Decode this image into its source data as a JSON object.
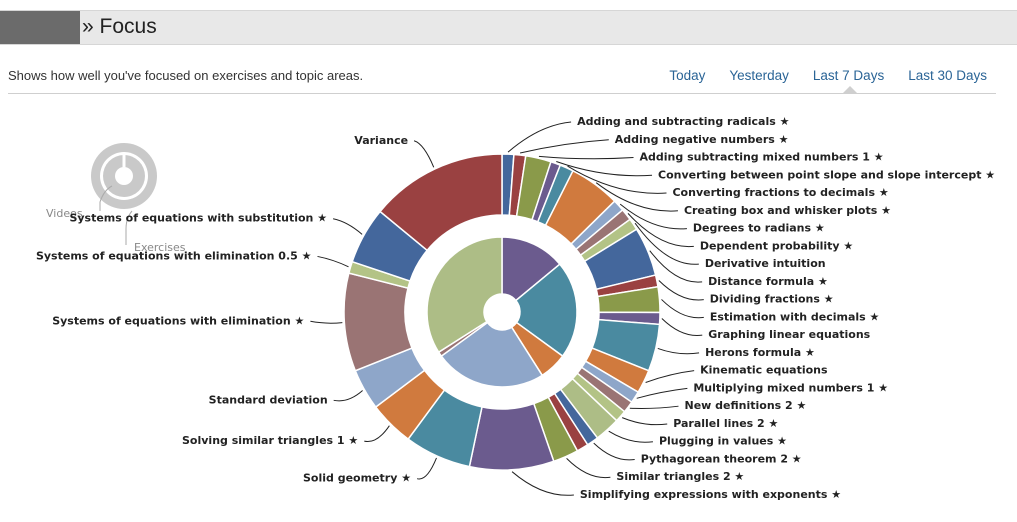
{
  "header": {
    "title": "» Focus"
  },
  "subtitle": "Shows how well you've focused on exercises and topic areas.",
  "range_tabs": [
    {
      "label": "Today",
      "active": false
    },
    {
      "label": "Yesterday",
      "active": false
    },
    {
      "label": "Last 7 Days",
      "active": true
    },
    {
      "label": "Last 30 Days",
      "active": false
    }
  ],
  "legend": {
    "videos_label": "Videos",
    "exercises_label": "Exercises"
  },
  "colors": {
    "accent_link": "#2a6496",
    "blue": "#44679c",
    "red": "#9a4141",
    "olive": "#8a9a4a",
    "purple": "#6b5b8e",
    "teal": "#4a8aa0",
    "orange": "#d07a3e",
    "lightblue": "#8ea6c9",
    "mauve": "#9a7474",
    "lightolive": "#b3c386",
    "lightsage": "#adbd86"
  },
  "chart_data": {
    "type": "pie",
    "title": "",
    "center_x": null,
    "inner_ring": {
      "label": "Videos",
      "series": [
        {
          "value": 14,
          "color": "#6b5b8e"
        },
        {
          "value": 21,
          "color": "#4a8aa0"
        },
        {
          "value": 6,
          "color": "#d07a3e"
        },
        {
          "value": 24,
          "color": "#8ea6c9"
        },
        {
          "value": 1,
          "color": "#9a7474"
        },
        {
          "value": 34,
          "color": "#adbd86"
        }
      ]
    },
    "outer_ring": {
      "label": "Exercises",
      "slices": [
        {
          "label": "Adding and subtracting radicals ★",
          "value": 1.2,
          "color": "#44679c"
        },
        {
          "label": "Adding negative numbers ★",
          "value": 1.2,
          "color": "#9a4141"
        },
        {
          "label": "Adding subtracting mixed numbers 1 ★",
          "value": 2.6,
          "color": "#8a9a4a"
        },
        {
          "label": "Converting between point slope and slope intercept ★",
          "value": 1.0,
          "color": "#6b5b8e"
        },
        {
          "label": "Converting fractions to decimals ★",
          "value": 1.4,
          "color": "#4a8aa0"
        },
        {
          "label": "Creating box and whisker plots ★",
          "value": 5.2,
          "color": "#d07a3e"
        },
        {
          "label": "Degrees to radians ★",
          "value": 1.2,
          "color": "#8ea6c9"
        },
        {
          "label": "Dependent probability ★",
          "value": 1.2,
          "color": "#9a7474"
        },
        {
          "label": "Derivative intuition",
          "value": 1.2,
          "color": "#b3c386"
        },
        {
          "label": "Distance formula ★",
          "value": 5.0,
          "color": "#44679c"
        },
        {
          "label": "Dividing fractions ★",
          "value": 1.2,
          "color": "#9a4141"
        },
        {
          "label": "Estimation with decimals ★",
          "value": 2.6,
          "color": "#8a9a4a"
        },
        {
          "label": "Graphing linear equations",
          "value": 1.2,
          "color": "#6b5b8e"
        },
        {
          "label": "Herons formula ★",
          "value": 4.8,
          "color": "#4a8aa0"
        },
        {
          "label": "Kinematic equations",
          "value": 2.4,
          "color": "#d07a3e"
        },
        {
          "label": "Multiplying mixed numbers 1 ★",
          "value": 1.2,
          "color": "#8ea6c9"
        },
        {
          "label": "New definitions 2 ★",
          "value": 1.2,
          "color": "#9a7474"
        },
        {
          "label": "Parallel lines 2 ★",
          "value": 1.2,
          "color": "#b3c386"
        },
        {
          "label": "Plugging in values ★",
          "value": 2.6,
          "color": "#adbd86"
        },
        {
          "label": "Pythagorean theorem 2 ★",
          "value": 1.2,
          "color": "#44679c"
        },
        {
          "label": "",
          "value": 1.2,
          "color": "#9a4141"
        },
        {
          "label": "Similar triangles 2 ★",
          "value": 2.6,
          "color": "#8a9a4a"
        },
        {
          "label": "Simplifying expressions with exponents ★",
          "value": 8.6,
          "color": "#6b5b8e"
        },
        {
          "label": "Solid geometry ★",
          "value": 6.8,
          "color": "#4a8aa0"
        },
        {
          "label": "Solving similar triangles 1 ★",
          "value": 4.6,
          "color": "#d07a3e"
        },
        {
          "label": "Standard deviation",
          "value": 4.2,
          "color": "#8ea6c9"
        },
        {
          "label": "Systems of equations with elimination ★",
          "value": 10.0,
          "color": "#9a7474"
        },
        {
          "label": "Systems of equations with elimination 0.5 ★",
          "value": 1.2,
          "color": "#b3c386"
        },
        {
          "label": "Systems of equations with substitution ★",
          "value": 5.8,
          "color": "#44679c"
        },
        {
          "label": "Variance",
          "value": 14.0,
          "color": "#9a4141"
        }
      ]
    }
  }
}
